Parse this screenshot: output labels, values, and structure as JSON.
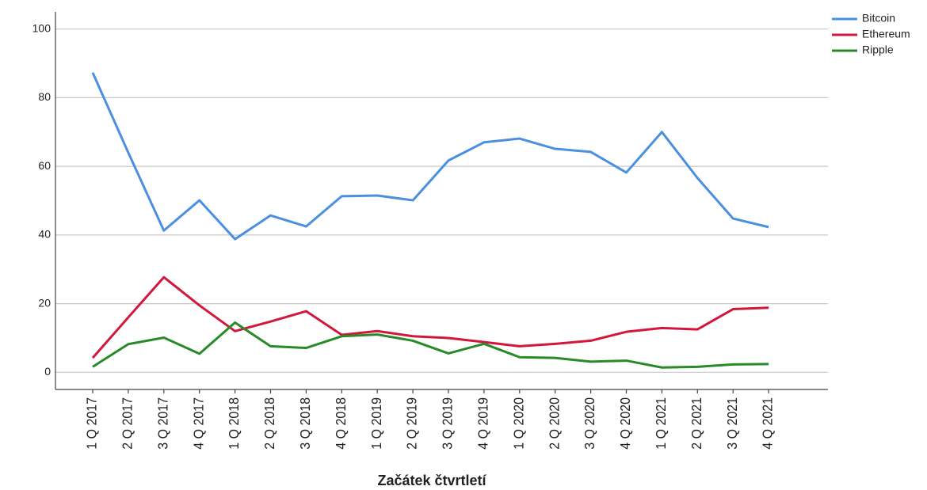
{
  "chart_data": {
    "type": "line",
    "x_label": "Začátek čtvrtletí",
    "categories": [
      "1 Q 2017",
      "2 Q 2017",
      "3 Q 2017",
      "4 Q 2017",
      "1 Q 2018",
      "2 Q 2018",
      "3 Q 2018",
      "4 Q 2018",
      "1 Q 2019",
      "2 Q 2019",
      "3 Q 2019",
      "4 Q 2019",
      "1 Q 2020",
      "2 Q 2020",
      "3 Q 2020",
      "4 Q 2020",
      "1 Q 2021",
      "2 Q 2021",
      "3 Q 2021",
      "4 Q 2021"
    ],
    "series": [
      {
        "name": "Bitcoin",
        "color": "#4a8fe0",
        "values": [
          87.3,
          64,
          41.3,
          50.1,
          38.8,
          45.7,
          42.5,
          51.3,
          51.5,
          50.1,
          61.7,
          67,
          68.1,
          65.1,
          64.2,
          58.2,
          70,
          56.6,
          44.8,
          42.3
        ]
      },
      {
        "name": "Ethereum",
        "color": "#d2173c",
        "values": [
          4.2,
          16,
          27.7,
          19.5,
          12,
          14.8,
          17.8,
          10.9,
          12,
          10.5,
          10,
          8.8,
          7.6,
          8.3,
          9.2,
          11.8,
          12.9,
          12.5,
          18.4,
          18.8
        ]
      },
      {
        "name": "Ripple",
        "color": "#288a28",
        "values": [
          1.6,
          8.2,
          10.1,
          5.4,
          14.5,
          7.6,
          7.1,
          10.5,
          11,
          9.2,
          5.5,
          8.3,
          4.4,
          4.2,
          3.1,
          3.4,
          1.4,
          1.6,
          2.3,
          2.4
        ]
      }
    ],
    "ylim": [
      -5,
      105
    ],
    "yticks": [
      0,
      20,
      40,
      60,
      80,
      100
    ],
    "grid": true,
    "legend": "top-right"
  }
}
